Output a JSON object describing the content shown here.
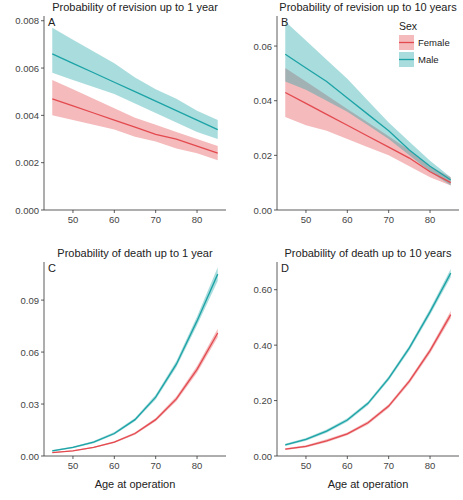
{
  "chart_data": [
    {
      "type": "line",
      "title": "Probability of revision up to 1 year",
      "annotation": "A",
      "x": [
        45,
        50,
        55,
        60,
        65,
        70,
        75,
        80,
        85
      ],
      "xlim": [
        43,
        87
      ],
      "xticks": [
        50,
        60,
        70,
        80
      ],
      "ylim": [
        0,
        0.0082
      ],
      "yticks": [
        {
          "value": 0,
          "label": "0.000"
        },
        {
          "value": 0.002,
          "label": "0.002"
        },
        {
          "value": 0.004,
          "label": "0.004"
        },
        {
          "value": 0.006,
          "label": "0.006"
        },
        {
          "value": 0.008,
          "label": "0.008"
        }
      ],
      "series": [
        {
          "name": "Female",
          "color": "#e34a4f",
          "values": [
            0.0047,
            0.0044,
            0.0041,
            0.0038,
            0.0035,
            0.0032,
            0.003,
            0.0027,
            0.0024
          ],
          "lower": [
            0.004,
            0.0038,
            0.0036,
            0.0034,
            0.0031,
            0.0029,
            0.0026,
            0.0024,
            0.0021
          ],
          "upper": [
            0.0055,
            0.0051,
            0.0047,
            0.0043,
            0.0039,
            0.0036,
            0.0033,
            0.003,
            0.0027
          ]
        },
        {
          "name": "Male",
          "color": "#1ca3a6",
          "values": [
            0.0066,
            0.0062,
            0.0058,
            0.0054,
            0.005,
            0.0046,
            0.0042,
            0.0038,
            0.0034
          ],
          "lower": [
            0.0058,
            0.0055,
            0.0052,
            0.0049,
            0.0045,
            0.0041,
            0.0037,
            0.0033,
            0.003
          ],
          "upper": [
            0.0077,
            0.0072,
            0.0067,
            0.0062,
            0.0056,
            0.0051,
            0.0047,
            0.0042,
            0.0038
          ]
        }
      ]
    },
    {
      "type": "line",
      "title": "Probability of revision up to 10 years",
      "annotation": "B",
      "legend": "top-right",
      "legend_title": "Sex",
      "x": [
        45,
        50,
        55,
        60,
        65,
        70,
        75,
        80,
        85
      ],
      "xlim": [
        43,
        87
      ],
      "xticks": [
        50,
        60,
        70,
        80
      ],
      "ylim": [
        0,
        0.071
      ],
      "yticks": [
        {
          "value": 0,
          "label": "0.00"
        },
        {
          "value": 0.02,
          "label": "0.02"
        },
        {
          "value": 0.04,
          "label": "0.04"
        },
        {
          "value": 0.06,
          "label": "0.06"
        }
      ],
      "series": [
        {
          "name": "Female",
          "color": "#e34a4f",
          "values": [
            0.043,
            0.039,
            0.035,
            0.031,
            0.027,
            0.023,
            0.019,
            0.014,
            0.01
          ],
          "lower": [
            0.034,
            0.031,
            0.029,
            0.026,
            0.023,
            0.02,
            0.016,
            0.012,
            0.009
          ],
          "upper": [
            0.052,
            0.047,
            0.042,
            0.037,
            0.032,
            0.027,
            0.022,
            0.016,
            0.012
          ]
        },
        {
          "name": "Male",
          "color": "#1ca3a6",
          "values": [
            0.057,
            0.052,
            0.047,
            0.041,
            0.035,
            0.029,
            0.022,
            0.016,
            0.011
          ],
          "lower": [
            0.047,
            0.044,
            0.04,
            0.036,
            0.031,
            0.026,
            0.02,
            0.014,
            0.009
          ],
          "upper": [
            0.069,
            0.062,
            0.055,
            0.048,
            0.04,
            0.032,
            0.025,
            0.018,
            0.012
          ]
        }
      ]
    },
    {
      "type": "line",
      "title": "Probability of death up to 1 year",
      "annotation": "C",
      "x_label": "Age at operation",
      "x": [
        45,
        50,
        55,
        60,
        65,
        70,
        75,
        80,
        85
      ],
      "xlim": [
        43,
        87
      ],
      "xticks": [
        50,
        60,
        70,
        80
      ],
      "ylim": [
        0,
        0.112
      ],
      "yticks": [
        {
          "value": 0,
          "label": "0.00"
        },
        {
          "value": 0.03,
          "label": "0.03"
        },
        {
          "value": 0.06,
          "label": "0.06"
        },
        {
          "value": 0.09,
          "label": "0.09"
        }
      ],
      "series": [
        {
          "name": "Female",
          "color": "#e34a4f",
          "values": [
            0.002,
            0.003,
            0.005,
            0.008,
            0.013,
            0.021,
            0.033,
            0.05,
            0.071
          ],
          "lower": [
            0.0017,
            0.0027,
            0.0046,
            0.0075,
            0.0123,
            0.02,
            0.0316,
            0.048,
            0.0685
          ],
          "upper": [
            0.0023,
            0.0033,
            0.0054,
            0.0085,
            0.0137,
            0.022,
            0.0344,
            0.052,
            0.0735
          ]
        },
        {
          "name": "Male",
          "color": "#1ca3a6",
          "values": [
            0.003,
            0.005,
            0.008,
            0.013,
            0.021,
            0.034,
            0.053,
            0.078,
            0.105
          ],
          "lower": [
            0.0026,
            0.0045,
            0.0074,
            0.0122,
            0.02,
            0.0326,
            0.0512,
            0.0755,
            0.101
          ],
          "upper": [
            0.0034,
            0.0055,
            0.0086,
            0.0138,
            0.022,
            0.0354,
            0.0548,
            0.0805,
            0.109
          ]
        }
      ]
    },
    {
      "type": "line",
      "title": "Probability of death up to 10 years",
      "annotation": "D",
      "x_label": "Age at operation",
      "x": [
        45,
        50,
        55,
        60,
        65,
        70,
        75,
        80,
        85
      ],
      "xlim": [
        43,
        87
      ],
      "xticks": [
        50,
        60,
        70,
        80
      ],
      "ylim": [
        0,
        0.7
      ],
      "yticks": [
        {
          "value": 0,
          "label": "0.00"
        },
        {
          "value": 0.2,
          "label": "0.20"
        },
        {
          "value": 0.4,
          "label": "0.40"
        },
        {
          "value": 0.6,
          "label": "0.60"
        }
      ],
      "series": [
        {
          "name": "Female",
          "color": "#e34a4f",
          "values": [
            0.025,
            0.035,
            0.055,
            0.08,
            0.12,
            0.18,
            0.27,
            0.38,
            0.51
          ],
          "lower": [
            0.022,
            0.031,
            0.05,
            0.075,
            0.114,
            0.173,
            0.262,
            0.37,
            0.497
          ],
          "upper": [
            0.028,
            0.039,
            0.06,
            0.085,
            0.126,
            0.187,
            0.278,
            0.39,
            0.523
          ]
        },
        {
          "name": "Male",
          "color": "#1ca3a6",
          "values": [
            0.04,
            0.06,
            0.09,
            0.13,
            0.19,
            0.28,
            0.39,
            0.52,
            0.66
          ],
          "lower": [
            0.036,
            0.055,
            0.084,
            0.124,
            0.183,
            0.272,
            0.381,
            0.509,
            0.645
          ],
          "upper": [
            0.044,
            0.065,
            0.096,
            0.136,
            0.197,
            0.288,
            0.399,
            0.531,
            0.675
          ]
        }
      ]
    }
  ]
}
